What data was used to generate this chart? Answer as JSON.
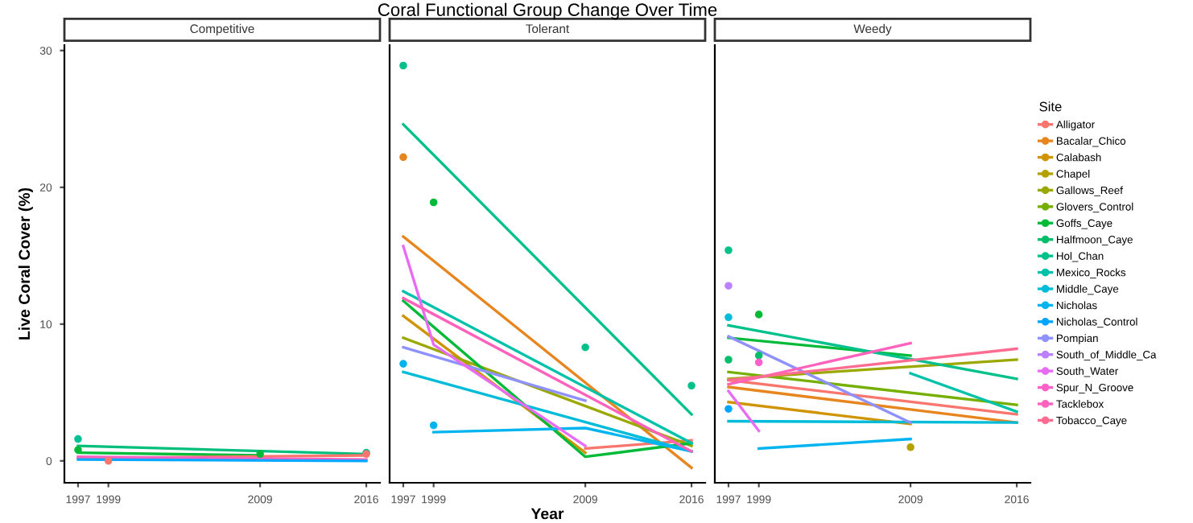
{
  "chart_data": [
    {
      "type": "line",
      "title": "Competitive",
      "ylabel": "Live Coral Cover (%)",
      "xlim": [
        1996.1,
        2016.9
      ],
      "ylim": [
        -1.6,
        30.4
      ],
      "xticks": [
        1997,
        1999,
        2009,
        2016
      ],
      "yticks": [
        0,
        10,
        20,
        30
      ],
      "grid": false,
      "series": [
        {
          "color": "#00BF7D",
          "x": [
            1997,
            2016
          ],
          "values": [
            1.1,
            0.5
          ]
        },
        {
          "color": "#00BA38",
          "x": [
            1997,
            2009
          ],
          "values": [
            0.6,
            0.4
          ]
        },
        {
          "color": "#F8766D",
          "x": [
            1997,
            2016
          ],
          "values": [
            0.2,
            0.4
          ]
        },
        {
          "color": "#FF61C3",
          "x": [
            1997,
            2016
          ],
          "values": [
            0.3,
            0.1
          ]
        },
        {
          "color": "#00A9FF",
          "x": [
            1997,
            2016
          ],
          "values": [
            0.1,
            0.0
          ]
        },
        {
          "type": "scatter",
          "color": "#00C094",
          "x": [
            1997,
            2016
          ],
          "values": [
            1.6,
            0.6
          ]
        },
        {
          "type": "scatter",
          "color": "#00BA38",
          "x": [
            1997,
            2009
          ],
          "values": [
            0.8,
            0.5
          ]
        },
        {
          "type": "scatter",
          "color": "#F8766D",
          "x": [
            1999,
            2016
          ],
          "values": [
            0.0,
            0.5
          ]
        }
      ]
    },
    {
      "type": "line",
      "title": "Tolerant",
      "xlabel": "Year",
      "annotations": [
        "Coral Functional Group Change Over Time"
      ],
      "xlim": [
        1996.1,
        2016.9
      ],
      "ylim": [
        -1.6,
        30.4
      ],
      "xticks": [
        1997,
        1999,
        2009,
        2016
      ],
      "tick_labels": "x",
      "grid": false,
      "series": [
        {
          "color": "#F8766D",
          "x": [
            2009,
            2016
          ],
          "values": [
            0.9,
            1.5
          ]
        },
        {
          "color": "#E7851E",
          "x": [
            1997,
            2016
          ],
          "values": [
            16.4,
            -0.5
          ]
        },
        {
          "color": "#D09400",
          "x": [
            1997,
            2009
          ],
          "values": [
            10.6,
            0.6
          ]
        },
        {
          "color": "#9AA800",
          "x": [
            1997,
            2016
          ],
          "values": [
            9.0,
            1.1
          ]
        },
        {
          "color": "#00BA38",
          "x": [
            1997,
            2009,
            2016
          ],
          "values": [
            11.7,
            0.3,
            1.3
          ]
        },
        {
          "color": "#00C08B",
          "x": [
            1997,
            2016
          ],
          "values": [
            24.6,
            3.4
          ]
        },
        {
          "color": "#00C1A9",
          "x": [
            1997,
            2016
          ],
          "values": [
            12.4,
            1.3
          ]
        },
        {
          "color": "#00BCD8",
          "x": [
            1997,
            2016
          ],
          "values": [
            6.5,
            0.7
          ]
        },
        {
          "color": "#00B4EF",
          "x": [
            1999,
            2009,
            2016
          ],
          "values": [
            2.1,
            2.4,
            0.7
          ]
        },
        {
          "color": "#8F91FF",
          "x": [
            1997,
            2009
          ],
          "values": [
            8.3,
            4.4
          ]
        },
        {
          "color": "#E76BF3",
          "x": [
            1997,
            1999,
            2009
          ],
          "values": [
            15.7,
            8.5,
            1.1
          ]
        },
        {
          "color": "#FF62BC",
          "x": [
            1997,
            2016
          ],
          "values": [
            11.9,
            0.7
          ]
        },
        {
          "type": "scatter",
          "color": "#00C08B",
          "x": [
            1997,
            2009,
            2016
          ],
          "values": [
            28.9,
            8.3,
            5.5
          ]
        },
        {
          "type": "scatter",
          "color": "#00BA38",
          "x": [
            1999
          ],
          "values": [
            18.9
          ]
        },
        {
          "type": "scatter",
          "color": "#E7851E",
          "x": [
            1997
          ],
          "values": [
            22.2
          ]
        },
        {
          "type": "scatter",
          "color": "#00B4EF",
          "x": [
            1997,
            1999
          ],
          "values": [
            7.1,
            2.6
          ]
        }
      ]
    },
    {
      "type": "line",
      "title": "Weedy",
      "legend": "right",
      "legend_title": "Site",
      "xlim": [
        1996.1,
        2016.9
      ],
      "ylim": [
        -1.6,
        30.4
      ],
      "xticks": [
        1997,
        1999,
        2009,
        2016
      ],
      "tick_labels": "x",
      "grid": false,
      "series": [
        {
          "name": "Alligator",
          "color": "#F8766D",
          "x": [
            1997,
            2016
          ],
          "values": [
            5.9,
            3.4
          ]
        },
        {
          "name": "Bacalar_Chico",
          "color": "#E7851E",
          "x": [
            1997,
            2016
          ],
          "values": [
            5.4,
            2.8
          ]
        },
        {
          "name": "Calabash",
          "color": "#D09400",
          "x": [
            1997,
            2009
          ],
          "values": [
            4.3,
            2.7
          ]
        },
        {
          "name": "Chapel",
          "type": "scatter",
          "color": "#B2A100",
          "x": [
            2009
          ],
          "values": [
            1.0
          ]
        },
        {
          "name": "Gallows_Reef",
          "color": "#9AA800",
          "x": [
            1997,
            2016
          ],
          "values": [
            6.0,
            7.4
          ]
        },
        {
          "name": "Glovers_Control",
          "color": "#75AF00",
          "x": [
            1997,
            2016
          ],
          "values": [
            6.5,
            4.1
          ]
        },
        {
          "name": "Goffs_Caye",
          "color": "#00BA38",
          "x": [
            1997,
            2009
          ],
          "values": [
            9.0,
            7.7
          ]
        },
        {
          "name": "Halfmoon_Caye",
          "type": "scatter",
          "color": "#00BE6C",
          "x": [
            1997,
            1999
          ],
          "values": [
            7.4,
            7.7
          ]
        },
        {
          "name": "Hol_Chan",
          "color": "#00C08B",
          "x": [
            1997,
            2016
          ],
          "values": [
            9.9,
            6.0
          ]
        },
        {
          "name": "Mexico_Rocks",
          "color": "#00C1A9",
          "x": [
            2009,
            2016
          ],
          "values": [
            6.4,
            3.6
          ]
        },
        {
          "name": "Middle_Caye",
          "color": "#00BCD8",
          "x": [
            1997,
            2016
          ],
          "values": [
            2.9,
            2.8
          ]
        },
        {
          "name": "Nicholas",
          "color": "#00B4EF",
          "x": [
            1999,
            2009
          ],
          "values": [
            0.9,
            1.6
          ]
        },
        {
          "name": "Nicholas_Control",
          "type": "scatter",
          "color": "#00A5FF",
          "x": [
            1997
          ],
          "values": [
            3.8
          ]
        },
        {
          "name": "Pompian",
          "color": "#8F91FF",
          "x": [
            1997,
            2009
          ],
          "values": [
            9.1,
            2.8
          ]
        },
        {
          "name": "South_of_Middle_Ca",
          "type": "scatter",
          "color": "#BB81FF",
          "x": [
            1997
          ],
          "values": [
            12.8
          ]
        },
        {
          "name": "South_Water",
          "color": "#E76BF3",
          "x": [
            1997,
            1999
          ],
          "values": [
            5.1,
            2.2
          ]
        },
        {
          "name": "Spur_N_Groove",
          "type": "scatter",
          "color": "#FF61C9",
          "x": [
            1999
          ],
          "values": [
            7.2
          ]
        },
        {
          "name": "Tacklebox",
          "color": "#FF62BC",
          "x": [
            1997,
            2009
          ],
          "values": [
            5.6,
            8.6
          ]
        },
        {
          "name": "Tobacco_Caye",
          "color": "#FF6C91",
          "x": [
            1997,
            2016
          ],
          "values": [
            5.9,
            8.2
          ]
        },
        {
          "type": "scatter",
          "color": "#00C08B",
          "x": [
            1997
          ],
          "values": [
            15.4
          ]
        },
        {
          "type": "scatter",
          "color": "#00BCD8",
          "x": [
            1997
          ],
          "values": [
            10.5
          ]
        },
        {
          "type": "scatter",
          "color": "#00BA38",
          "x": [
            1999
          ],
          "values": [
            10.7
          ]
        }
      ]
    }
  ]
}
